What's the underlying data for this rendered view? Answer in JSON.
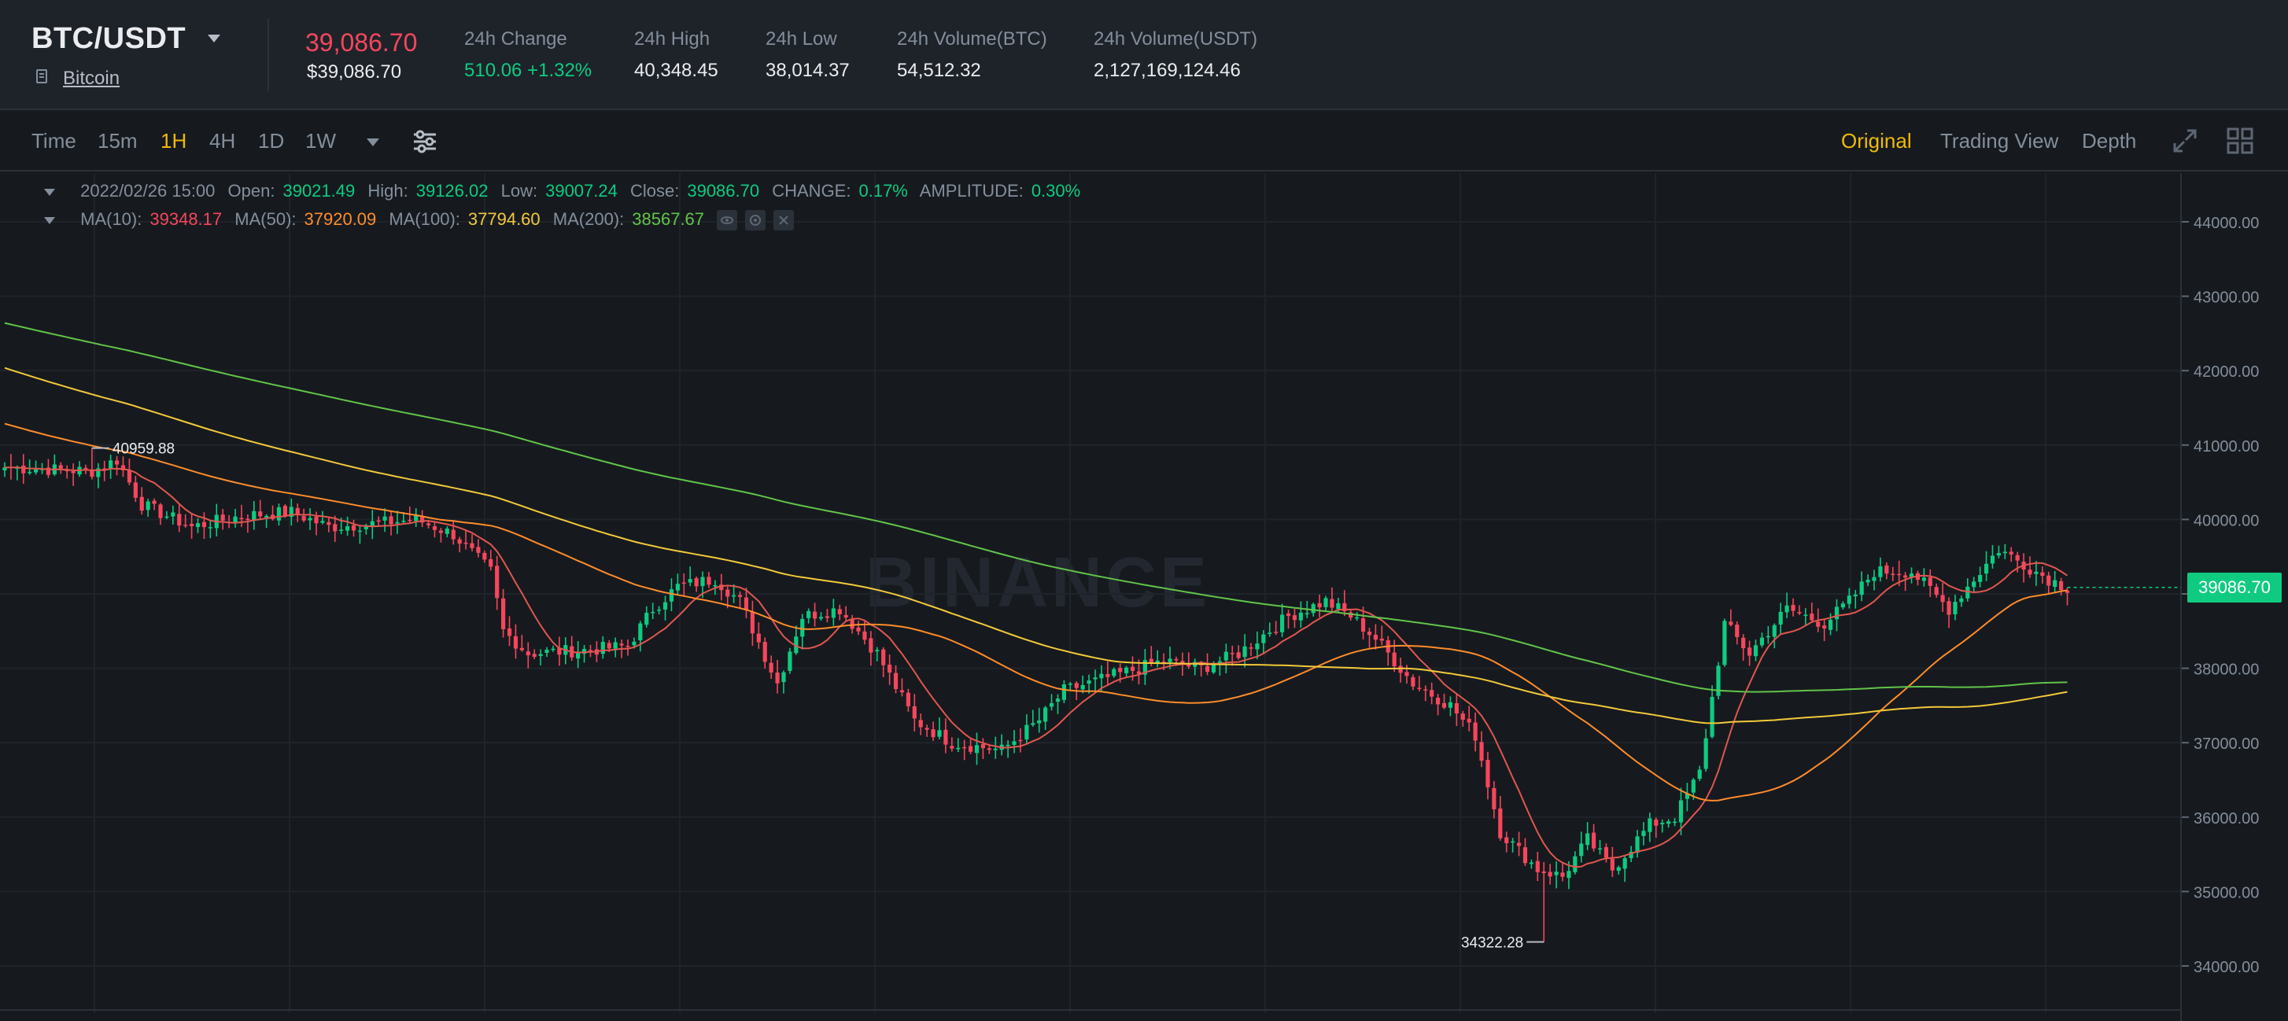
{
  "ticker": {
    "pair": "BTC/USDT",
    "coin_name": "Bitcoin",
    "last_price": "39,086.70",
    "last_price_usd": "$39,086.70",
    "stats": [
      {
        "label": "24h Change",
        "value": "510.06 +1.32%"
      },
      {
        "label": "24h High",
        "value": "40,348.45"
      },
      {
        "label": "24h Low",
        "value": "38,014.37"
      },
      {
        "label": "24h Volume(BTC)",
        "value": "54,512.32"
      },
      {
        "label": "24h Volume(USDT)",
        "value": "2,127,169,124.46"
      }
    ]
  },
  "toolbar": {
    "timeframes": [
      "Time",
      "15m",
      "1H",
      "4H",
      "1D",
      "1W"
    ],
    "active_timeframe": "1H",
    "views": [
      "Original",
      "Trading View",
      "Depth"
    ],
    "active_view": "Original"
  },
  "legend": {
    "date": "2022/02/26 15:00",
    "open_label": "Open:",
    "open": "39021.49",
    "high_label": "High:",
    "high": "39126.02",
    "low_label": "Low:",
    "low": "39007.24",
    "close_label": "Close:",
    "close": "39086.70",
    "change_label": "CHANGE:",
    "change": "0.17%",
    "amplitude_label": "AMPLITUDE:",
    "amplitude": "0.30%",
    "ma10_label": "MA(10):",
    "ma10": "39348.17",
    "ma50_label": "MA(50):",
    "ma50": "37920.09",
    "ma100_label": "MA(100):",
    "ma100": "37794.60",
    "ma200_label": "MA(200):",
    "ma200": "38567.67"
  },
  "watermark": "BINANCE",
  "colors": {
    "up": "#0ecb81",
    "down": "#f6465d",
    "accent": "#f0b90b",
    "ma10": "#e0564f",
    "ma50": "#ff8c2b",
    "ma100": "#f3c93a",
    "ma200": "#62c44a"
  },
  "chart_data": {
    "type": "candlestick",
    "y_ticks": [
      "44000.00",
      "43000.00",
      "42000.00",
      "41000.00",
      "40000.00",
      "39000.00",
      "38000.00",
      "37000.00",
      "36000.00",
      "35000.00",
      "34000.00"
    ],
    "ylim": [
      33900,
      44200
    ],
    "current_price_label": "39086.70",
    "current_price": 39086.7,
    "high_marker": {
      "label": "40959.88",
      "value": 40959.88
    },
    "low_marker": {
      "label": "34322.28",
      "value": 34322.28
    },
    "close_keyframes": [
      [
        0,
        40700
      ],
      [
        14,
        40650
      ],
      [
        18,
        40800
      ],
      [
        22,
        40200
      ],
      [
        30,
        39900
      ],
      [
        38,
        40050
      ],
      [
        46,
        40100
      ],
      [
        52,
        39900
      ],
      [
        60,
        39950
      ],
      [
        66,
        40000
      ],
      [
        72,
        39800
      ],
      [
        78,
        39300
      ],
      [
        80,
        38500
      ],
      [
        84,
        38200
      ],
      [
        94,
        38250
      ],
      [
        100,
        38300
      ],
      [
        104,
        38800
      ],
      [
        108,
        39100
      ],
      [
        114,
        39200
      ],
      [
        118,
        38900
      ],
      [
        124,
        37800
      ],
      [
        128,
        38700
      ],
      [
        134,
        38800
      ],
      [
        140,
        38200
      ],
      [
        146,
        37300
      ],
      [
        152,
        37000
      ],
      [
        160,
        36900
      ],
      [
        166,
        37300
      ],
      [
        170,
        37700
      ],
      [
        178,
        37900
      ],
      [
        186,
        38100
      ],
      [
        192,
        38000
      ],
      [
        198,
        38200
      ],
      [
        206,
        38700
      ],
      [
        212,
        38900
      ],
      [
        216,
        38700
      ],
      [
        220,
        38400
      ],
      [
        226,
        37800
      ],
      [
        232,
        37500
      ],
      [
        236,
        37100
      ],
      [
        240,
        35800
      ],
      [
        246,
        35300
      ],
      [
        250,
        35200
      ],
      [
        254,
        35700
      ],
      [
        258,
        35300
      ],
      [
        264,
        35900
      ],
      [
        268,
        36000
      ],
      [
        272,
        36600
      ],
      [
        276,
        38600
      ],
      [
        280,
        38200
      ],
      [
        286,
        38800
      ],
      [
        292,
        38600
      ],
      [
        296,
        38900
      ],
      [
        300,
        39300
      ],
      [
        306,
        39300
      ],
      [
        312,
        38800
      ],
      [
        316,
        39200
      ],
      [
        320,
        39600
      ],
      [
        324,
        39400
      ],
      [
        328,
        39200
      ],
      [
        331,
        39087
      ]
    ]
  }
}
